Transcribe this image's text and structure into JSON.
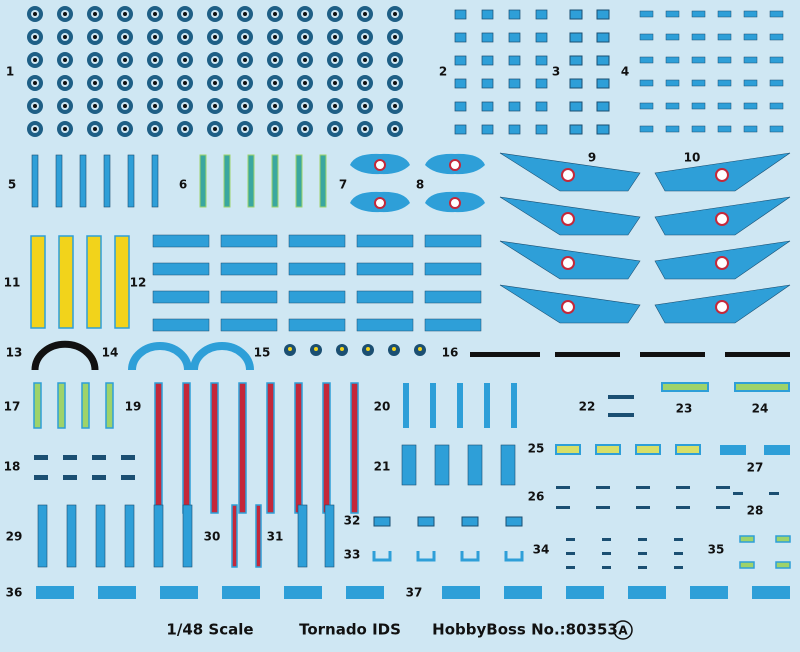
{
  "labels": [
    "1",
    "2",
    "3",
    "4",
    "5",
    "6",
    "7",
    "8",
    "9",
    "10",
    "11",
    "12",
    "13",
    "14",
    "15",
    "16",
    "17",
    "18",
    "19",
    "20",
    "21",
    "22",
    "23",
    "24",
    "25",
    "26",
    "27",
    "28",
    "29",
    "30",
    "31",
    "32",
    "33",
    "34",
    "35",
    "36",
    "37"
  ],
  "footer": {
    "scale": "1/48 Scale",
    "model": "Tornado IDS",
    "maker": "HobbyBoss No.:80353",
    "sheet": "A"
  }
}
